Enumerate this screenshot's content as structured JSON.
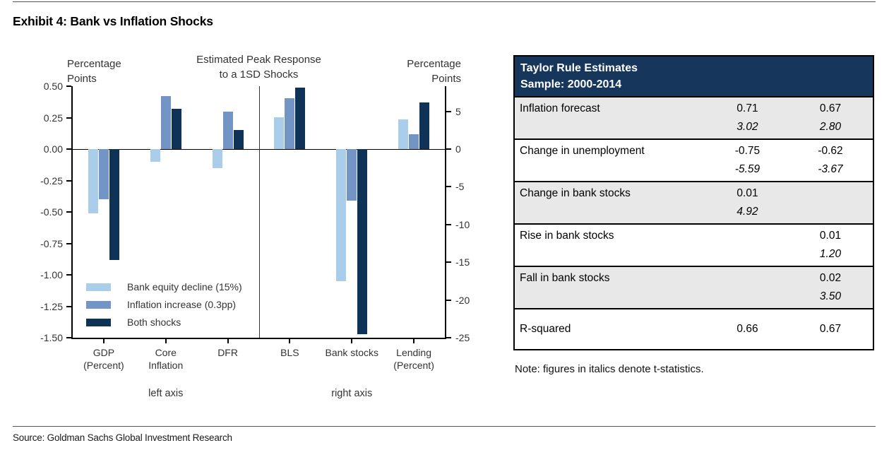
{
  "page": {
    "title": "Exhibit 4: Bank vs Inflation Shocks",
    "source": "Source: Goldman Sachs Global Investment Research"
  },
  "chart_data": {
    "type": "bar",
    "title": "Estimated Peak Response\nto a 1SD Shocks",
    "left_axis_title": "Percentage\nPoints",
    "right_axis_title": "Percentage\nPoints",
    "categories": [
      "GDP\n(Percent)",
      "Core\nInflation",
      "DFR",
      "BLS",
      "Bank stocks",
      "Lending\n(Percent)"
    ],
    "category_axis": [
      "left",
      "left",
      "left",
      "right",
      "right",
      "right"
    ],
    "axis_group_labels": {
      "left": "left axis",
      "right": "right axis"
    },
    "left_axis": {
      "ticks": [
        "0.50",
        "0.25",
        "0.00",
        "-0.25",
        "-0.50",
        "-0.75",
        "-1.00",
        "-1.25",
        "-1.50"
      ],
      "min": -1.5,
      "max": 0.5
    },
    "right_axis": {
      "ticks": [
        "5",
        "0",
        "-5",
        "-10",
        "-15",
        "-20",
        "-25"
      ],
      "min": -25,
      "max": 8.3
    },
    "series": [
      {
        "name": "Bank equity decline (15%)",
        "color": "#aacdea",
        "values": [
          -0.51,
          -0.1,
          -0.15,
          4.2,
          -17.5,
          3.9
        ]
      },
      {
        "name": "Inflation increase (0.3pp)",
        "color": "#7295c5",
        "values": [
          -0.4,
          0.42,
          0.3,
          6.7,
          -6.8,
          2.0
        ]
      },
      {
        "name": "Both shocks",
        "color": "#0e3356",
        "values": [
          -0.88,
          0.32,
          0.15,
          8.1,
          -24.5,
          6.2
        ]
      }
    ],
    "legend_position": "bottom-left-inside",
    "grid": false
  },
  "table": {
    "header_line1": "Taylor Rule Estimates",
    "header_line2": "Sample: 2000-2014",
    "header_bg": "#16365c",
    "rows": [
      {
        "label": "Inflation forecast",
        "col1": "0.71",
        "col2": "0.67",
        "t1": "3.02",
        "t2": "2.80",
        "shaded": true,
        "single": false
      },
      {
        "label": "Change in unemployment",
        "col1": "-0.75",
        "col2": "-0.62",
        "t1": "-5.59",
        "t2": "-3.67",
        "shaded": false,
        "single": false
      },
      {
        "label": "Change in bank stocks",
        "col1": "0.01",
        "col2": "",
        "t1": "4.92",
        "t2": "",
        "shaded": true,
        "single": false
      },
      {
        "label": "Rise in bank stocks",
        "col1": "",
        "col2": "0.01",
        "t1": "",
        "t2": "1.20",
        "shaded": false,
        "single": false
      },
      {
        "label": "Fall in bank stocks",
        "col1": "",
        "col2": "0.02",
        "t1": "",
        "t2": "3.50",
        "shaded": true,
        "single": false
      },
      {
        "label": "R-squared",
        "col1": "0.66",
        "col2": "0.67",
        "t1": "",
        "t2": "",
        "shaded": false,
        "single": true
      }
    ],
    "note": "Note: figures in italics denote t-statistics."
  }
}
